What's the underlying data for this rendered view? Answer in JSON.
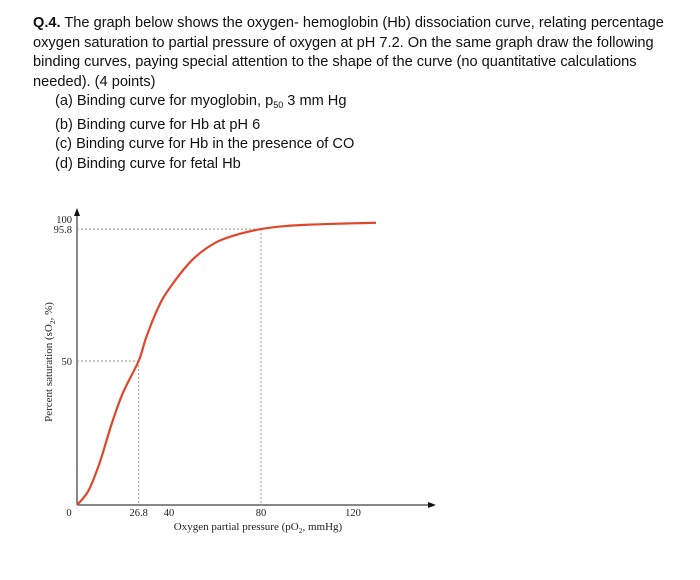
{
  "question": {
    "label": "Q.4.",
    "text": "The graph below shows the oxygen- hemoglobin (Hb) dissociation curve, relating percentage oxygen saturation to partial pressure of oxygen at pH 7.2. On the same graph draw the following binding curves, paying special attention to the shape of the curve (no quantitative calculations needed). (4 points)",
    "parts": [
      {
        "prefix": "(a) Binding curve for myoglobin, p",
        "sub": "50",
        "suffix": " 3 mm Hg"
      },
      {
        "prefix": "(b) Binding curve for Hb at pH 6",
        "sub": "",
        "suffix": ""
      },
      {
        "prefix": "(c) Binding curve for Hb in the presence of CO",
        "sub": "",
        "suffix": ""
      },
      {
        "prefix": "(d) Binding curve for fetal Hb",
        "sub": "",
        "suffix": ""
      }
    ]
  },
  "chart_data": {
    "type": "line",
    "xlabel_prefix": "Oxygen partial pressure (pO",
    "xlabel_sub": "2",
    "xlabel_suffix": ", mmHg)",
    "ylabel_prefix": "Percent saturation (sO",
    "ylabel_sub": "2",
    "ylabel_suffix": ", %)",
    "x_ticks": [
      {
        "value": 0,
        "label": "0"
      },
      {
        "value": 26.8,
        "label": "26.8"
      },
      {
        "value": 40,
        "label": "40"
      },
      {
        "value": 80,
        "label": "80"
      },
      {
        "value": 120,
        "label": "120"
      }
    ],
    "y_ticks": [
      {
        "value": 100,
        "label": "100"
      },
      {
        "value": 95.8,
        "label": "95.8"
      },
      {
        "value": 50,
        "label": "50"
      }
    ],
    "xlim": [
      0,
      130
    ],
    "ylim": [
      0,
      100
    ],
    "reference_points": [
      {
        "x": 26.8,
        "y": 50
      },
      {
        "x": 80,
        "y": 95.8
      }
    ],
    "series": [
      {
        "color": "#e0472a",
        "x": [
          0,
          5,
          10,
          15,
          20,
          26.8,
          30,
          35,
          40,
          50,
          60,
          70,
          80,
          90,
          100,
          110,
          120,
          130
        ],
        "y": [
          0,
          5,
          15,
          28,
          39,
          50,
          58,
          68,
          75,
          85,
          91,
          94,
          95.8,
          96.8,
          97.3,
          97.6,
          97.8,
          98
        ]
      }
    ],
    "grid": false,
    "legend": "none"
  }
}
